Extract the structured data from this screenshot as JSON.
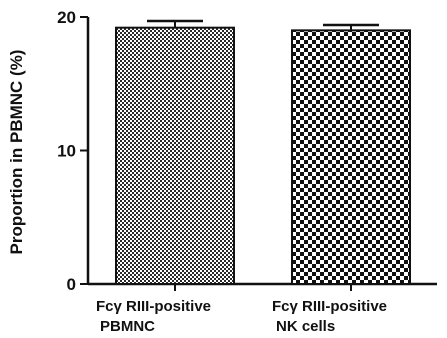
{
  "chart_data": {
    "type": "bar",
    "title": "",
    "xlabel": "",
    "ylabel": "Proportion in PBMNC (%)",
    "ylim": [
      0,
      20
    ],
    "yticks": [
      "0",
      "10",
      "20"
    ],
    "categories": [
      {
        "line1": "Fcγ RIII-positive",
        "line2": "PBMNC"
      },
      {
        "line1": "Fcγ RIII-positive",
        "line2": "NK cells"
      }
    ],
    "values": [
      19.2,
      19.0
    ],
    "errors": [
      0.5,
      0.4
    ],
    "patterns": [
      "fine-dots",
      "checkerboard"
    ],
    "grid": false,
    "legend": "none"
  }
}
